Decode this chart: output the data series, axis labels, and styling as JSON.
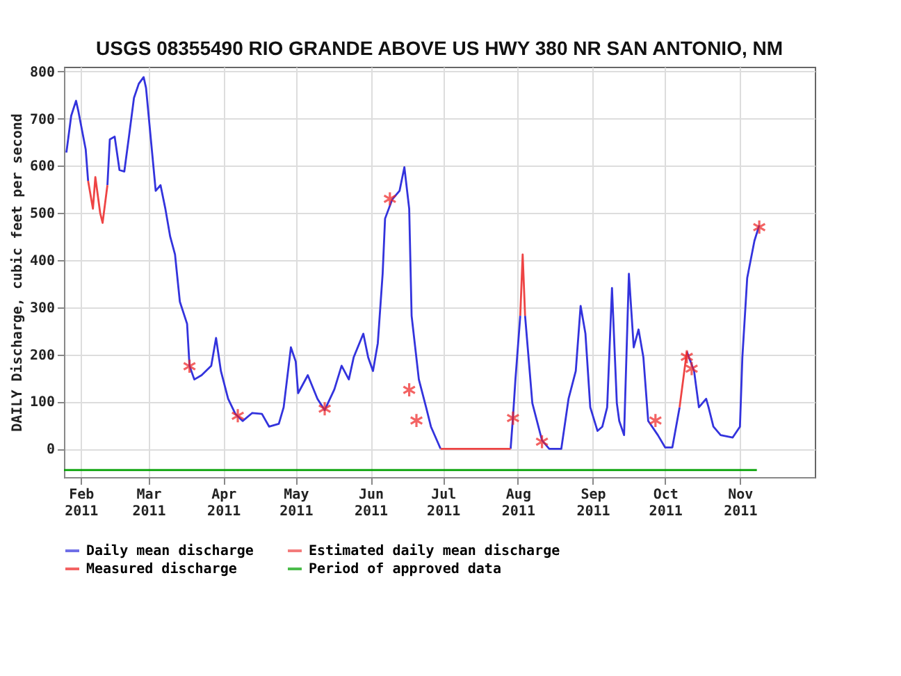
{
  "chart_data": {
    "type": "line",
    "title": "USGS 08355490 RIO GRANDE ABOVE US HWY 380 NR SAN ANTONIO, NM",
    "ylabel": "DAILY Discharge, cubic feet per second",
    "xlim": [
      "2011-01-25",
      "2011-12-02"
    ],
    "xticks": [
      {
        "value": "2011-02-01",
        "label": "Feb 2011"
      },
      {
        "value": "2011-03-01",
        "label": "Mar 2011"
      },
      {
        "value": "2011-04-01",
        "label": "Apr 2011"
      },
      {
        "value": "2011-05-01",
        "label": "May 2011"
      },
      {
        "value": "2011-06-01",
        "label": "Jun 2011"
      },
      {
        "value": "2011-07-01",
        "label": "Jul 2011"
      },
      {
        "value": "2011-08-01",
        "label": "Aug 2011"
      },
      {
        "value": "2011-09-01",
        "label": "Sep 2011"
      },
      {
        "value": "2011-10-01",
        "label": "Oct 2011"
      },
      {
        "value": "2011-11-01",
        "label": "Nov 2011"
      }
    ],
    "ylim": [
      -60,
      810
    ],
    "yticks": [
      0,
      100,
      200,
      300,
      400,
      500,
      600,
      700,
      800
    ],
    "grid": true,
    "legend": "bottom",
    "line_style": "solid",
    "series": [
      {
        "name": "Daily mean discharge",
        "color": "#3333dd",
        "x": [
          "2011-01-26",
          "2011-01-28",
          "2011-01-30",
          "2011-01-31",
          "2011-02-03",
          "2011-02-04",
          "2011-02-07",
          "2011-02-12",
          "2011-02-13",
          "2011-02-15",
          "2011-02-17",
          "2011-02-19",
          "2011-02-21",
          "2011-02-23",
          "2011-02-25",
          "2011-02-27",
          "2011-02-28",
          "2011-03-02",
          "2011-03-04",
          "2011-03-06",
          "2011-03-08",
          "2011-03-10",
          "2011-03-12",
          "2011-03-14",
          "2011-03-17",
          "2011-03-18",
          "2011-03-20",
          "2011-03-23",
          "2011-03-27",
          "2011-03-29",
          "2011-03-31",
          "2011-04-03",
          "2011-04-06",
          "2011-04-09",
          "2011-04-13",
          "2011-04-17",
          "2011-04-20",
          "2011-04-24",
          "2011-04-26",
          "2011-04-29",
          "2011-05-01",
          "2011-05-02",
          "2011-05-06",
          "2011-05-10",
          "2011-05-13",
          "2011-05-17",
          "2011-05-20",
          "2011-05-23",
          "2011-05-25",
          "2011-05-29",
          "2011-05-31",
          "2011-06-02",
          "2011-06-04",
          "2011-06-06",
          "2011-06-07",
          "2011-06-10",
          "2011-06-13",
          "2011-06-15",
          "2011-06-17",
          "2011-06-18",
          "2011-06-21",
          "2011-06-24",
          "2011-06-26",
          "2011-06-30",
          "2011-07-15",
          "2011-07-29",
          "2011-07-30",
          "2011-07-31",
          "2011-08-02",
          "2011-08-03",
          "2011-08-04",
          "2011-08-07",
          "2011-08-11",
          "2011-08-14",
          "2011-08-19",
          "2011-08-22",
          "2011-08-25",
          "2011-08-27",
          "2011-08-29",
          "2011-08-31",
          "2011-09-03",
          "2011-09-05",
          "2011-09-07",
          "2011-09-09",
          "2011-09-11",
          "2011-09-12",
          "2011-09-14",
          "2011-09-16",
          "2011-09-18",
          "2011-09-20",
          "2011-09-22",
          "2011-09-24",
          "2011-09-28",
          "2011-10-01",
          "2011-10-04",
          "2011-10-07",
          "2011-10-08",
          "2011-10-10",
          "2011-10-13",
          "2011-10-15",
          "2011-10-18",
          "2011-10-19",
          "2011-10-21",
          "2011-10-24",
          "2011-10-29",
          "2011-11-01",
          "2011-11-02",
          "2011-11-04",
          "2011-11-07",
          "2011-11-09"
        ],
        "values": [
          628,
          706,
          738,
          715,
          635,
          568,
          null,
          559,
          656,
          662,
          591,
          588,
          665,
          744,
          774,
          788,
          765,
          656,
          547,
          559,
          509,
          450,
          412,
          312,
          265,
          176,
          147,
          156,
          176,
          235,
          165,
          106,
          74,
          59,
          76,
          74,
          47,
          53,
          88,
          215,
          185,
          118,
          156,
          106,
          82,
          126,
          176,
          147,
          194,
          244,
          194,
          165,
          224,
          371,
          488,
          529,
          547,
          597,
          509,
          282,
          147,
          88,
          47,
          0,
          null,
          0,
          68,
          147,
          282,
          null,
          282,
          97,
          18,
          0,
          0,
          106,
          165,
          303,
          244,
          88,
          38,
          47,
          88,
          341,
          97,
          59,
          29,
          371,
          215,
          253,
          194,
          59,
          29,
          3,
          3,
          88,
          null,
          206,
          165,
          88,
          106,
          88,
          47,
          29,
          24,
          47,
          194,
          362,
          441,
          474
        ]
      },
      {
        "name": "Estimated daily mean discharge",
        "color": "#ee4444",
        "x": [
          "2011-02-04",
          "2011-02-06",
          "2011-02-07",
          "2011-02-09",
          "2011-02-10",
          "2011-02-12",
          "2011-04-01",
          "2011-06-30",
          "2011-07-29",
          "2011-07-31",
          "2011-08-02",
          "2011-08-03",
          "2011-08-04",
          "2011-09-01",
          "2011-10-07",
          "2011-10-10"
        ],
        "values": [
          568,
          509,
          576,
          500,
          479,
          559,
          null,
          0,
          0,
          null,
          282,
          412,
          282,
          null,
          88,
          206
        ]
      },
      {
        "name": "Measured discharge",
        "color": "#ee2222",
        "type": "scatter",
        "marker": "cross",
        "x": [
          "2011-03-18",
          "2011-04-07",
          "2011-05-13",
          "2011-06-09",
          "2011-06-17",
          "2011-06-20",
          "2011-07-30",
          "2011-08-11",
          "2011-09-27",
          "2011-10-10",
          "2011-10-12",
          "2011-11-09"
        ],
        "values": [
          175,
          70,
          85,
          530,
          125,
          60,
          65,
          15,
          60,
          195,
          170,
          470
        ]
      },
      {
        "name": "Period of approved data",
        "color": "#00a000",
        "x": [
          "2011-01-25",
          "2011-11-08"
        ],
        "values": [
          -45,
          -45
        ]
      }
    ]
  }
}
